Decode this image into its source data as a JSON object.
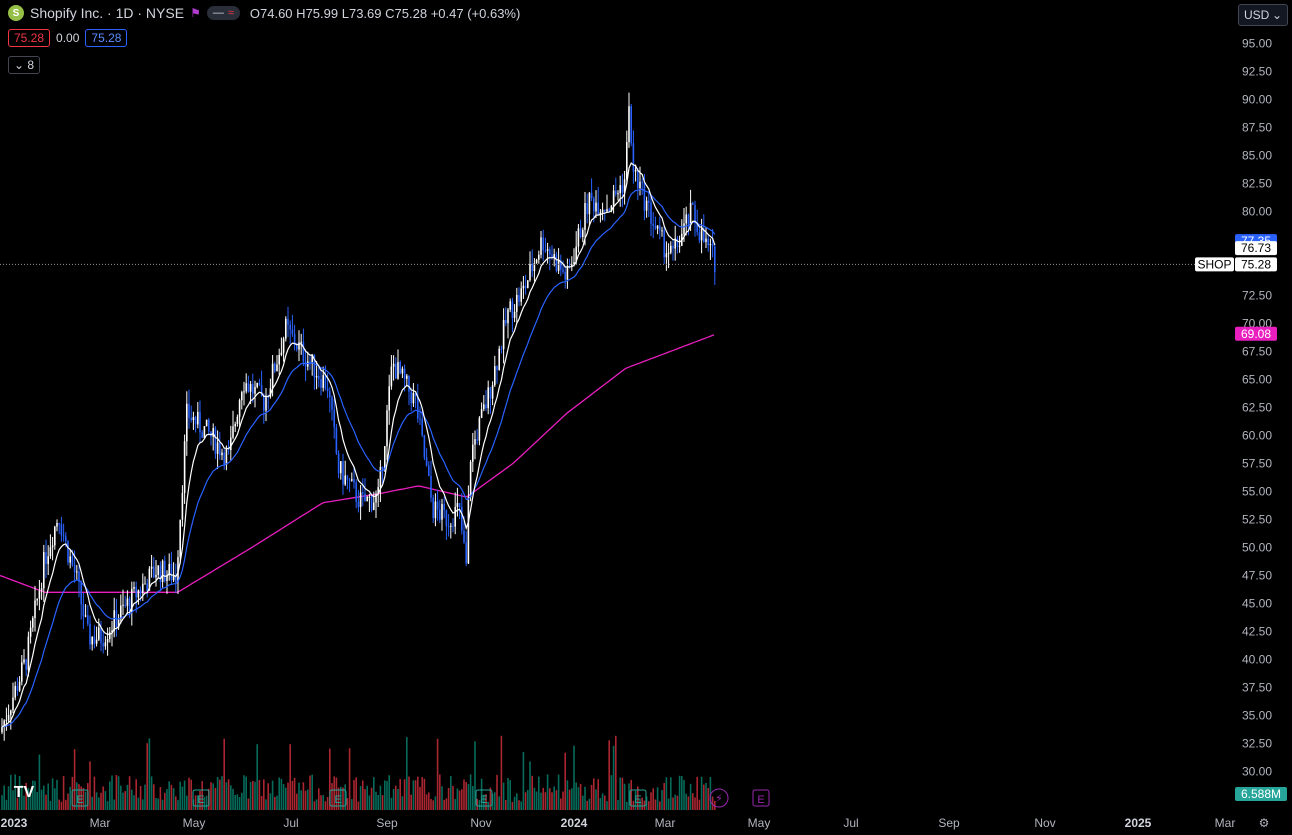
{
  "header": {
    "symbol_title": "Shopify Inc. · 1D · NYSE",
    "logo_letter": "S",
    "ohlc": [
      {
        "label": "O",
        "value": "74.60"
      },
      {
        "label": "H",
        "value": "75.99"
      },
      {
        "label": "L",
        "value": "73.69"
      },
      {
        "label": "C",
        "value": "75.28"
      }
    ],
    "change": "+0.47 (+0.63%)",
    "bid": "75.28",
    "spread": "0.00",
    "ask": "75.28",
    "indicators_count": "8",
    "currency": "USD"
  },
  "price_tags": {
    "ema_blue": "77.35",
    "ema_white": "76.73",
    "symbol": "SHOP",
    "last": "75.28",
    "ma_magenta": "69.08",
    "volume": "6.588M"
  },
  "colors": {
    "background": "#000000",
    "candle": "#ffffff",
    "candle_down": "#2962ff",
    "ema_fast": "#ffffff",
    "ema_slow": "#2962ff",
    "ma_long": "#e91ebf",
    "vol_up": "#089981",
    "vol_down": "#f23645",
    "earnings_marker": "#26a69a",
    "event_marker": "#9c27b0"
  },
  "chart_data": {
    "type": "candlestick",
    "y_ticks": [
      "95.00",
      "92.50",
      "90.00",
      "87.50",
      "85.00",
      "82.50",
      "80.00",
      "77.50",
      "75.00",
      "72.50",
      "70.00",
      "67.50",
      "65.00",
      "62.50",
      "60.00",
      "57.50",
      "55.00",
      "52.50",
      "50.00",
      "47.50",
      "45.00",
      "42.50",
      "40.00",
      "37.50",
      "35.00",
      "32.50",
      "30.00"
    ],
    "ylim": [
      28.0,
      96.5
    ],
    "x_ticks": [
      {
        "label": "2023",
        "bold": true
      },
      {
        "label": "Mar",
        "bold": false
      },
      {
        "label": "May",
        "bold": false
      },
      {
        "label": "Jul",
        "bold": false
      },
      {
        "label": "Sep",
        "bold": false
      },
      {
        "label": "Nov",
        "bold": false
      },
      {
        "label": "2024",
        "bold": true
      },
      {
        "label": "Mar",
        "bold": false
      },
      {
        "label": "May",
        "bold": false
      },
      {
        "label": "Jul",
        "bold": false
      },
      {
        "label": "Sep",
        "bold": false
      },
      {
        "label": "Nov",
        "bold": false
      },
      {
        "label": "2025",
        "bold": true
      },
      {
        "label": "Mar",
        "bold": false
      }
    ],
    "price_path": [
      [
        "2023-01-03",
        33.5
      ],
      [
        "2023-01-20",
        40.0
      ],
      [
        "2023-02-01",
        49.0
      ],
      [
        "2023-02-10",
        53.0
      ],
      [
        "2023-02-15",
        50.0
      ],
      [
        "2023-02-21",
        47.5
      ],
      [
        "2023-03-01",
        42.0
      ],
      [
        "2023-03-10",
        42.0
      ],
      [
        "2023-03-24",
        44.5
      ],
      [
        "2023-04-14",
        48.0
      ],
      [
        "2023-04-27",
        47.5
      ],
      [
        "2023-05-04",
        62.0
      ],
      [
        "2023-05-19",
        60.0
      ],
      [
        "2023-05-31",
        58.0
      ],
      [
        "2023-06-09",
        65.0
      ],
      [
        "2023-06-23",
        63.0
      ],
      [
        "2023-07-07",
        69.5
      ],
      [
        "2023-07-20",
        67.0
      ],
      [
        "2023-08-03",
        64.5
      ],
      [
        "2023-08-10",
        57.0
      ],
      [
        "2023-08-25",
        54.0
      ],
      [
        "2023-09-05",
        54.5
      ],
      [
        "2023-09-14",
        66.5
      ],
      [
        "2023-09-29",
        63.0
      ],
      [
        "2023-10-10",
        53.5
      ],
      [
        "2023-10-20",
        52.5
      ],
      [
        "2023-10-27",
        53.5
      ],
      [
        "2023-11-01",
        48.0
      ],
      [
        "2023-11-03",
        58.0
      ],
      [
        "2023-11-15",
        63.5
      ],
      [
        "2023-11-28",
        71.0
      ],
      [
        "2023-12-08",
        73.0
      ],
      [
        "2023-12-20",
        77.5
      ],
      [
        "2024-01-05",
        74.0
      ],
      [
        "2024-01-19",
        81.0
      ],
      [
        "2024-02-01",
        80.5
      ],
      [
        "2024-02-12",
        83.0
      ],
      [
        "2024-02-14",
        90.5
      ],
      [
        "2024-02-16",
        84.0
      ],
      [
        "2024-02-23",
        81.5
      ],
      [
        "2024-03-05",
        77.5
      ],
      [
        "2024-03-13",
        76.0
      ],
      [
        "2024-03-26",
        80.0
      ],
      [
        "2024-04-02",
        77.5
      ],
      [
        "2024-04-11",
        75.28
      ]
    ],
    "ma_long_path": [
      [
        "2023-01-03",
        47.5
      ],
      [
        "2023-02-01",
        46.0
      ],
      [
        "2023-03-15",
        46.0
      ],
      [
        "2023-04-28",
        46.0
      ],
      [
        "2023-06-15",
        50.0
      ],
      [
        "2023-07-31",
        54.0
      ],
      [
        "2023-09-05",
        54.8
      ],
      [
        "2023-10-01",
        55.5
      ],
      [
        "2023-11-01",
        54.5
      ],
      [
        "2023-12-01",
        57.5
      ],
      [
        "2024-01-05",
        62.0
      ],
      [
        "2024-02-12",
        66.0
      ],
      [
        "2024-04-11",
        69.08
      ]
    ],
    "earnings_dates": [
      "2023-02-15",
      "2023-05-04",
      "2023-08-02",
      "2023-11-02",
      "2024-02-13"
    ],
    "upcoming_earnings_date": "2024-05-08"
  }
}
